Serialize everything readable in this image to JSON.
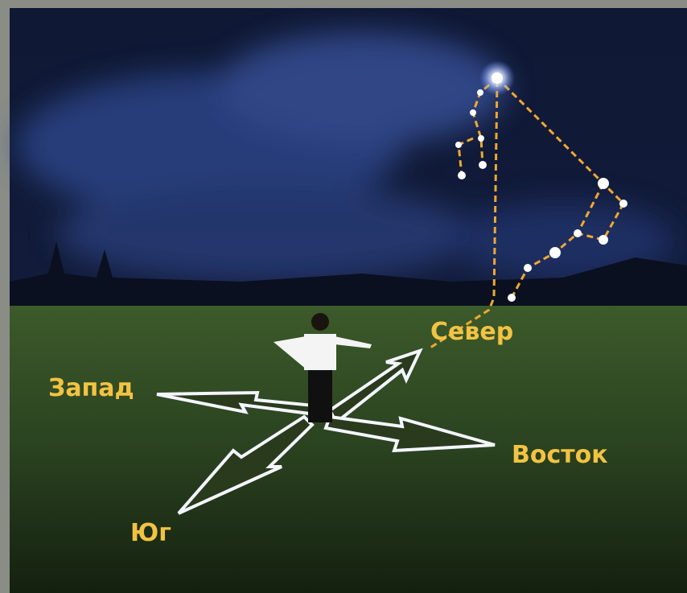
{
  "labels": {
    "north": "Север",
    "west": "Запад",
    "east": "Восток",
    "south": "Юг"
  }
}
